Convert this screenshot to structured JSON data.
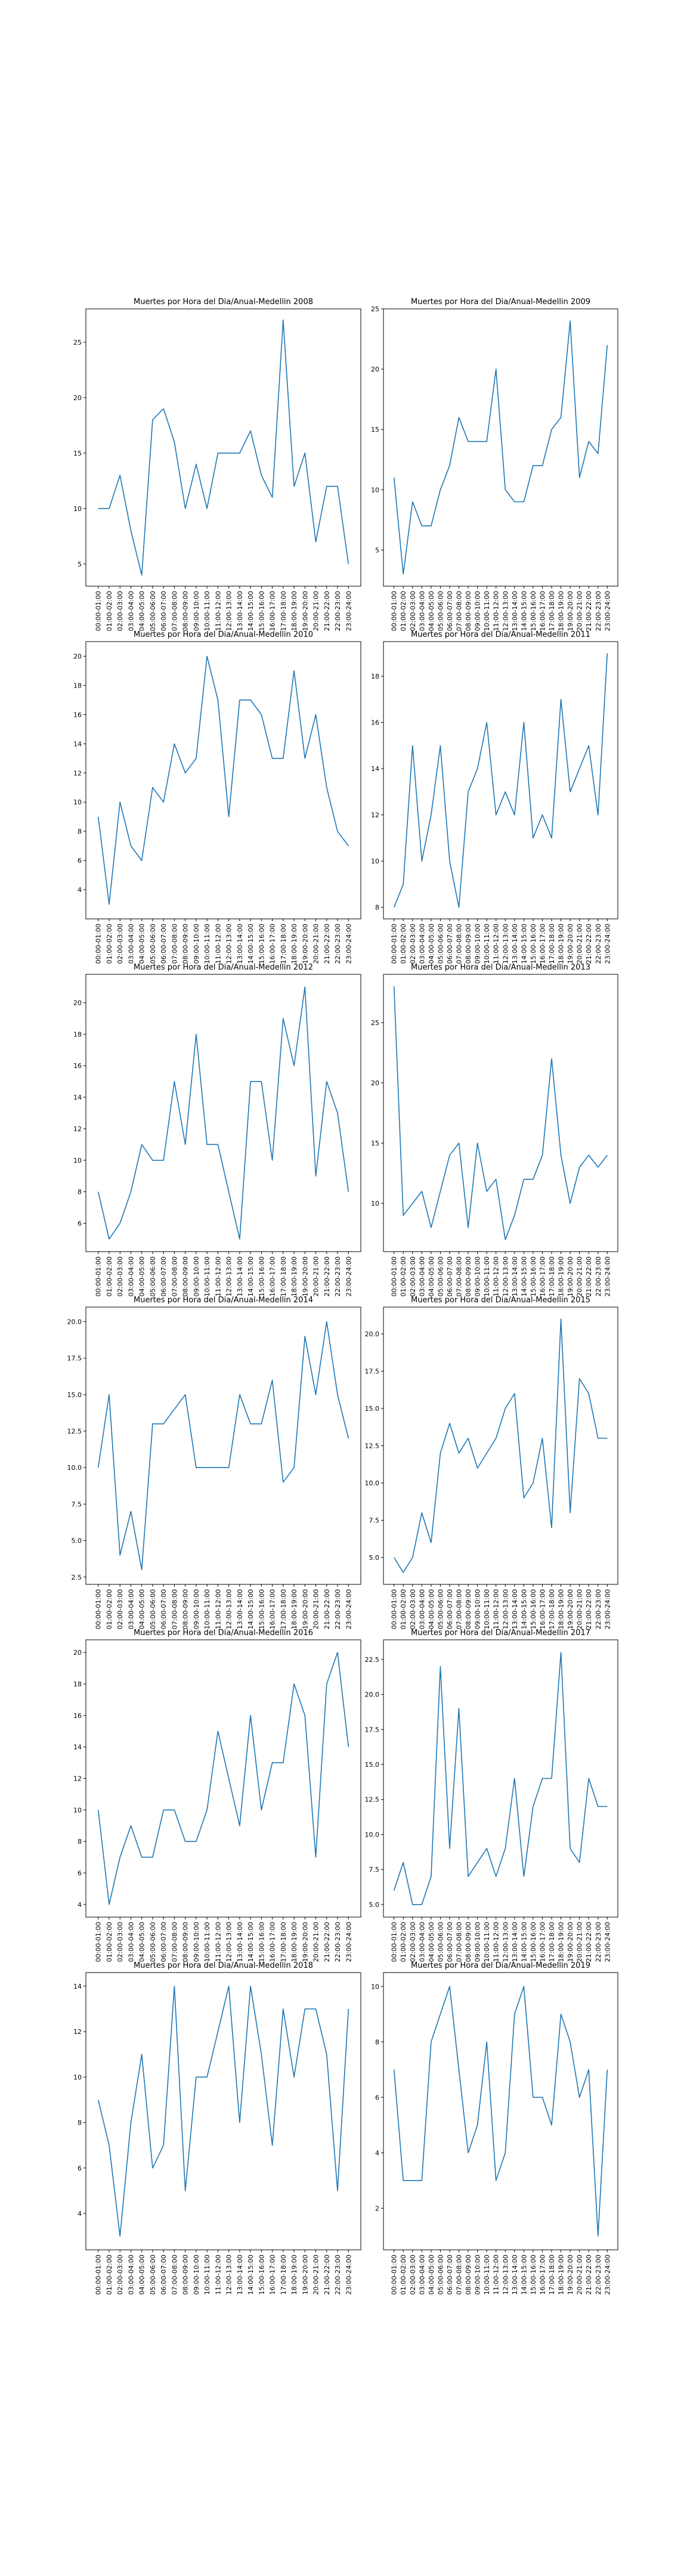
{
  "hours": [
    "00:00-01:00",
    "01:00-02:00",
    "02:00-03:00",
    "03:00-04:00",
    "04:00-05:00",
    "05:00-06:00",
    "06:00-07:00",
    "07:00-08:00",
    "08:00-09:00",
    "09:00-10:00",
    "10:00-11:00",
    "11:00-12:00",
    "12:00-13:00",
    "13:00-14:00",
    "14:00-15:00",
    "15:00-16:00",
    "16:00-17:00",
    "17:00-18:00",
    "18:00-19:00",
    "19:00-20:00",
    "20:00-21:00",
    "21:00-22:00",
    "22:00-23:00",
    "23:00-24:00"
  ],
  "line_color": "#1f77b4",
  "chart_data": [
    {
      "type": "line",
      "title": "Muertes por Hora del Dia/Anual-Medellin 2008",
      "values": [
        10,
        10,
        13,
        8,
        4,
        18,
        19,
        16,
        10,
        14,
        10,
        15,
        15,
        15,
        17,
        13,
        11,
        27,
        12,
        15,
        7,
        12,
        12,
        5
      ],
      "ylim": [
        3,
        28
      ],
      "yticks": [
        5,
        10,
        15,
        20,
        25
      ],
      "grid": false
    },
    {
      "type": "line",
      "title": "Muertes por Hora del Dia/Anual-Medellin 2009",
      "values": [
        11,
        3,
        9,
        7,
        7,
        10,
        12,
        16,
        14,
        14,
        14,
        20,
        10,
        9,
        9,
        12,
        12,
        15,
        16,
        24,
        11,
        14,
        13,
        22
      ],
      "ylim": [
        2,
        25
      ],
      "yticks": [
        5,
        10,
        15,
        20,
        25
      ],
      "grid": false
    },
    {
      "type": "line",
      "title": "Muertes por Hora del Dia/Anual-Medellin 2010",
      "values": [
        9,
        3,
        10,
        7,
        6,
        11,
        10,
        14,
        12,
        13,
        20,
        17,
        9,
        17,
        17,
        16,
        13,
        13,
        19,
        13,
        16,
        11,
        8,
        7
      ],
      "ylim": [
        2,
        21
      ],
      "yticks": [
        4,
        6,
        8,
        10,
        12,
        14,
        16,
        18,
        20
      ],
      "grid": false
    },
    {
      "type": "line",
      "title": "Muertes por Hora del Dia/Anual-Medellin 2011",
      "values": [
        8,
        9,
        15,
        10,
        12,
        15,
        10,
        8,
        13,
        14,
        16,
        12,
        13,
        12,
        16,
        11,
        12,
        11,
        17,
        13,
        14,
        15,
        12,
        19
      ],
      "ylim": [
        7.5,
        19.5
      ],
      "yticks": [
        8,
        10,
        12,
        14,
        16,
        18
      ],
      "grid": false
    },
    {
      "type": "line",
      "title": "Muertes por Hora del Dia/Anual-Medellin 2012",
      "values": [
        8,
        5,
        6,
        8,
        11,
        10,
        10,
        15,
        11,
        18,
        11,
        11,
        8,
        5,
        15,
        15,
        10,
        19,
        16,
        21,
        9,
        15,
        13,
        8
      ],
      "ylim": [
        4.2,
        21.8
      ],
      "yticks": [
        6,
        8,
        10,
        12,
        14,
        16,
        18,
        20
      ],
      "grid": false
    },
    {
      "type": "line",
      "title": "Muertes por Hora del Dia/Anual-Medellin 2013",
      "values": [
        28,
        9,
        10,
        11,
        8,
        11,
        14,
        15,
        8,
        15,
        11,
        12,
        7,
        9,
        12,
        12,
        14,
        22,
        14,
        10,
        13,
        14,
        13,
        14
      ],
      "ylim": [
        6,
        29
      ],
      "yticks": [
        10,
        15,
        20,
        25
      ],
      "grid": false
    },
    {
      "type": "line",
      "title": "Muertes por Hora del Dia/Anual-Medellin 2014",
      "values": [
        10,
        15,
        4,
        7,
        3,
        13,
        13,
        14,
        15,
        10,
        10,
        10,
        10,
        15,
        13,
        13,
        16,
        9,
        10,
        19,
        15,
        20,
        15,
        12
      ],
      "ylim": [
        2,
        21
      ],
      "yticks": [
        2.5,
        5.0,
        7.5,
        10.0,
        12.5,
        15.0,
        17.5,
        20.0
      ],
      "grid": false
    },
    {
      "type": "line",
      "title": "Muertes por Hora del Dia/Anual-Medellin 2015",
      "values": [
        5,
        4,
        5,
        8,
        6,
        12,
        14,
        12,
        13,
        11,
        12,
        13,
        15,
        16,
        9,
        10,
        13,
        7,
        21,
        8,
        17,
        16,
        13,
        13
      ],
      "ylim": [
        3.2,
        21.8
      ],
      "yticks": [
        5.0,
        7.5,
        10.0,
        12.5,
        15.0,
        17.5,
        20.0
      ],
      "grid": false
    },
    {
      "type": "line",
      "title": "Muertes por Hora del Dia/Anual-Medellin 2016",
      "values": [
        10,
        4,
        7,
        9,
        7,
        7,
        10,
        10,
        8,
        8,
        10,
        15,
        12,
        9,
        16,
        10,
        13,
        13,
        18,
        16,
        7,
        18,
        20,
        14
      ],
      "ylim": [
        3.2,
        20.8
      ],
      "yticks": [
        4,
        6,
        8,
        10,
        12,
        14,
        16,
        18,
        20
      ],
      "grid": false
    },
    {
      "type": "line",
      "title": "Muertes por Hora del Dia/Anual-Medellin 2017",
      "values": [
        6,
        8,
        5,
        5,
        7,
        22,
        9,
        19,
        7,
        8,
        9,
        7,
        9,
        14,
        7,
        12,
        14,
        14,
        23,
        9,
        8,
        14,
        12,
        12
      ],
      "ylim": [
        4.1,
        23.9
      ],
      "yticks": [
        5.0,
        7.5,
        10.0,
        12.5,
        15.0,
        17.5,
        20.0,
        22.5
      ],
      "grid": false
    },
    {
      "type": "line",
      "title": "Muertes por Hora del Dia/Anual-Medellin 2018",
      "values": [
        9,
        7,
        3,
        8,
        11,
        6,
        7,
        14,
        5,
        10,
        10,
        12,
        14,
        8,
        14,
        11,
        7,
        13,
        10,
        13,
        13,
        11,
        5,
        13
      ],
      "ylim": [
        2.4,
        14.6
      ],
      "yticks": [
        4,
        6,
        8,
        10,
        12,
        14
      ],
      "grid": false
    },
    {
      "type": "line",
      "title": "Muertes por Hora del Dia/Anual-Medellin 2019",
      "values": [
        7,
        3,
        3,
        3,
        8,
        9,
        10,
        7,
        4,
        5,
        8,
        3,
        4,
        9,
        10,
        6,
        6,
        5,
        9,
        8,
        6,
        7,
        1,
        7
      ],
      "ylim": [
        0.5,
        10.5
      ],
      "yticks": [
        2,
        4,
        6,
        8,
        10
      ],
      "grid": false
    }
  ]
}
